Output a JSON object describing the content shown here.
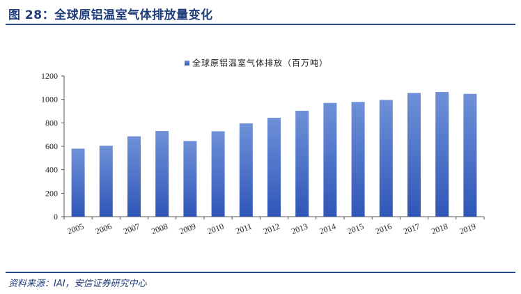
{
  "figure": {
    "title": "图 28：全球原铝温室气体排放量变化",
    "source": "资料来源：IAI，安信证券研究中心"
  },
  "colors": {
    "bar_top": "#6f91d8",
    "bar_bottom": "#2f56b8",
    "accent": "#1f3d7a"
  },
  "chart_data": {
    "type": "bar",
    "title": "",
    "xlabel": "",
    "ylabel": "",
    "categories": [
      "2005",
      "2006",
      "2007",
      "2008",
      "2009",
      "2010",
      "2011",
      "2012",
      "2013",
      "2014",
      "2015",
      "2016",
      "2017",
      "2018",
      "2019"
    ],
    "series": [
      {
        "name": "全球原铝温室气体排放（百万吨）",
        "values": [
          580,
          605,
          685,
          730,
          645,
          728,
          795,
          843,
          903,
          970,
          978,
          995,
          1055,
          1063,
          1047
        ]
      }
    ],
    "ylim": [
      0,
      1200
    ],
    "yticks": [
      0,
      200,
      400,
      600,
      800,
      1000,
      1200
    ],
    "grid": false,
    "legend_position": "top-center"
  }
}
